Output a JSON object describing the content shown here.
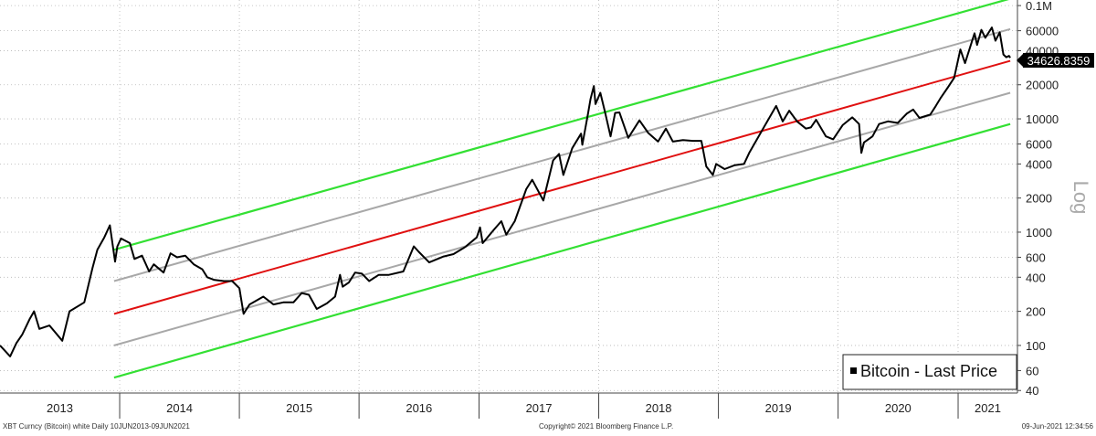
{
  "chart_data": {
    "type": "line",
    "title": "",
    "xlabel": "",
    "ylabel": "Log",
    "y_scale": "log",
    "ylim": [
      38,
      112000
    ],
    "x_range": [
      "2013-01-01",
      "2021-07-01"
    ],
    "grid": "dotted",
    "y_ticks": [
      40,
      60,
      100,
      200,
      400,
      600,
      1000,
      2000,
      4000,
      6000,
      10000,
      20000,
      40000,
      60000,
      100000
    ],
    "y_tick_labels": [
      "40",
      "60",
      "100",
      "200",
      "400",
      "600",
      "1000",
      "2000",
      "4000",
      "6000",
      "10000",
      "20000",
      "40000",
      "60000",
      "0.1M"
    ],
    "x_tick_labels": [
      "2013",
      "2014",
      "2015",
      "2016",
      "2017",
      "2018",
      "2019",
      "2020",
      "2021"
    ],
    "legend": {
      "position": "bottom-right",
      "entries": [
        "Bitcoin - Last Price"
      ]
    },
    "last_value_label": "34626.8359",
    "last_value": 34626.8359,
    "footer": {
      "left": "XBT Curncy (Bitcoin) white  Daily 10JUN2013-09JUN2021",
      "center": "Copyright© 2021 Bloomberg Finance L.P.",
      "right": "09-Jun-2021 12:34:56"
    },
    "colors": {
      "price": "#000000",
      "center": "#e01010",
      "inner": "#a8a8a8",
      "outer": "#33e033"
    },
    "series": [
      {
        "name": "Bitcoin - Last Price",
        "type": "line",
        "points": [
          [
            "2013-01-01",
            100
          ],
          [
            "2013-02-01",
            80
          ],
          [
            "2013-02-20",
            105
          ],
          [
            "2013-03-10",
            125
          ],
          [
            "2013-04-01",
            170
          ],
          [
            "2013-04-15",
            200
          ],
          [
            "2013-05-01",
            140
          ],
          [
            "2013-06-01",
            150
          ],
          [
            "2013-07-10",
            110
          ],
          [
            "2013-08-01",
            200
          ],
          [
            "2013-09-15",
            240
          ],
          [
            "2013-10-10",
            480
          ],
          [
            "2013-10-25",
            700
          ],
          [
            "2013-11-15",
            900
          ],
          [
            "2013-12-02",
            1150
          ],
          [
            "2013-12-10",
            800
          ],
          [
            "2013-12-18",
            550
          ],
          [
            "2013-12-25",
            750
          ],
          [
            "2014-01-05",
            880
          ],
          [
            "2014-02-01",
            800
          ],
          [
            "2014-02-15",
            580
          ],
          [
            "2014-03-10",
            620
          ],
          [
            "2014-04-01",
            450
          ],
          [
            "2014-04-15",
            520
          ],
          [
            "2014-05-15",
            440
          ],
          [
            "2014-06-05",
            650
          ],
          [
            "2014-06-25",
            600
          ],
          [
            "2014-07-20",
            620
          ],
          [
            "2014-08-15",
            520
          ],
          [
            "2014-09-10",
            470
          ],
          [
            "2014-09-25",
            400
          ],
          [
            "2014-10-15",
            380
          ],
          [
            "2014-11-15",
            370
          ],
          [
            "2014-12-10",
            370
          ],
          [
            "2015-01-01",
            320
          ],
          [
            "2015-01-14",
            190
          ],
          [
            "2015-02-01",
            230
          ],
          [
            "2015-03-15",
            270
          ],
          [
            "2015-04-15",
            230
          ],
          [
            "2015-05-15",
            240
          ],
          [
            "2015-06-15",
            240
          ],
          [
            "2015-07-10",
            290
          ],
          [
            "2015-08-01",
            280
          ],
          [
            "2015-08-25",
            210
          ],
          [
            "2015-09-25",
            235
          ],
          [
            "2015-10-20",
            270
          ],
          [
            "2015-11-04",
            420
          ],
          [
            "2015-11-12",
            330
          ],
          [
            "2015-12-01",
            360
          ],
          [
            "2015-12-20",
            440
          ],
          [
            "2016-01-10",
            430
          ],
          [
            "2016-02-01",
            370
          ],
          [
            "2016-03-01",
            420
          ],
          [
            "2016-04-01",
            420
          ],
          [
            "2016-05-15",
            450
          ],
          [
            "2016-06-16",
            750
          ],
          [
            "2016-07-01",
            670
          ],
          [
            "2016-08-02",
            540
          ],
          [
            "2016-09-15",
            610
          ],
          [
            "2016-10-15",
            640
          ],
          [
            "2016-11-20",
            740
          ],
          [
            "2016-12-25",
            900
          ],
          [
            "2017-01-04",
            1100
          ],
          [
            "2017-01-12",
            800
          ],
          [
            "2017-02-15",
            1050
          ],
          [
            "2017-03-10",
            1250
          ],
          [
            "2017-03-25",
            950
          ],
          [
            "2017-04-20",
            1250
          ],
          [
            "2017-05-25",
            2400
          ],
          [
            "2017-06-12",
            2900
          ],
          [
            "2017-07-16",
            1900
          ],
          [
            "2017-08-15",
            4300
          ],
          [
            "2017-09-02",
            4900
          ],
          [
            "2017-09-15",
            3200
          ],
          [
            "2017-10-12",
            5500
          ],
          [
            "2017-11-08",
            7400
          ],
          [
            "2017-11-12",
            5900
          ],
          [
            "2017-11-29",
            11000
          ],
          [
            "2017-12-07",
            15000
          ],
          [
            "2017-12-17",
            19500
          ],
          [
            "2017-12-22",
            13500
          ],
          [
            "2018-01-06",
            17000
          ],
          [
            "2018-01-20",
            11500
          ],
          [
            "2018-02-06",
            7000
          ],
          [
            "2018-02-20",
            11300
          ],
          [
            "2018-03-05",
            11400
          ],
          [
            "2018-04-01",
            6800
          ],
          [
            "2018-05-05",
            9700
          ],
          [
            "2018-06-01",
            7500
          ],
          [
            "2018-07-01",
            6300
          ],
          [
            "2018-07-25",
            8200
          ],
          [
            "2018-08-15",
            6300
          ],
          [
            "2018-09-15",
            6500
          ],
          [
            "2018-10-15",
            6400
          ],
          [
            "2018-11-10",
            6400
          ],
          [
            "2018-11-25",
            3800
          ],
          [
            "2018-12-15",
            3200
          ],
          [
            "2018-12-25",
            4000
          ],
          [
            "2019-01-20",
            3600
          ],
          [
            "2019-02-20",
            3900
          ],
          [
            "2019-03-20",
            4000
          ],
          [
            "2019-04-05",
            5000
          ],
          [
            "2019-05-15",
            8000
          ],
          [
            "2019-06-26",
            13000
          ],
          [
            "2019-07-16",
            9500
          ],
          [
            "2019-08-05",
            11800
          ],
          [
            "2019-08-29",
            9500
          ],
          [
            "2019-09-25",
            8200
          ],
          [
            "2019-10-10",
            8400
          ],
          [
            "2019-10-26",
            9800
          ],
          [
            "2019-11-25",
            7000
          ],
          [
            "2019-12-17",
            6600
          ],
          [
            "2020-01-15",
            8800
          ],
          [
            "2020-02-13",
            10300
          ],
          [
            "2020-03-05",
            9000
          ],
          [
            "2020-03-12",
            5000
          ],
          [
            "2020-03-20",
            6200
          ],
          [
            "2020-04-15",
            7000
          ],
          [
            "2020-05-05",
            9000
          ],
          [
            "2020-06-01",
            9500
          ],
          [
            "2020-07-01",
            9200
          ],
          [
            "2020-07-28",
            11100
          ],
          [
            "2020-08-17",
            12100
          ],
          [
            "2020-09-05",
            10200
          ],
          [
            "2020-10-08",
            10900
          ],
          [
            "2020-10-25",
            13000
          ],
          [
            "2020-11-10",
            15500
          ],
          [
            "2020-12-01",
            19000
          ],
          [
            "2020-12-20",
            23000
          ],
          [
            "2021-01-08",
            41000
          ],
          [
            "2021-01-22",
            31000
          ],
          [
            "2021-02-20",
            57000
          ],
          [
            "2021-02-28",
            45000
          ],
          [
            "2021-03-13",
            61000
          ],
          [
            "2021-03-25",
            52000
          ],
          [
            "2021-04-14",
            64000
          ],
          [
            "2021-04-25",
            49000
          ],
          [
            "2021-05-08",
            58000
          ],
          [
            "2021-05-19",
            37000
          ],
          [
            "2021-05-28",
            35000
          ],
          [
            "2021-06-05",
            36000
          ],
          [
            "2021-06-09",
            34626.8359
          ]
        ]
      },
      {
        "name": "",
        "type": "regression-center",
        "points": [
          [
            "2013-12-15",
            190
          ],
          [
            "2021-06-09",
            32500
          ]
        ]
      },
      {
        "name": "",
        "type": "band-inner-upper",
        "points": [
          [
            "2013-12-15",
            370
          ],
          [
            "2021-06-09",
            62000
          ]
        ]
      },
      {
        "name": "",
        "type": "band-inner-lower",
        "points": [
          [
            "2013-12-15",
            100
          ],
          [
            "2021-06-09",
            17000
          ]
        ]
      },
      {
        "name": "",
        "type": "band-outer-upper",
        "points": [
          [
            "2013-12-15",
            700
          ],
          [
            "2021-07-01",
            120000
          ]
        ]
      },
      {
        "name": "",
        "type": "band-outer-lower",
        "points": [
          [
            "2013-12-15",
            52
          ],
          [
            "2021-06-09",
            9000
          ]
        ]
      }
    ]
  }
}
